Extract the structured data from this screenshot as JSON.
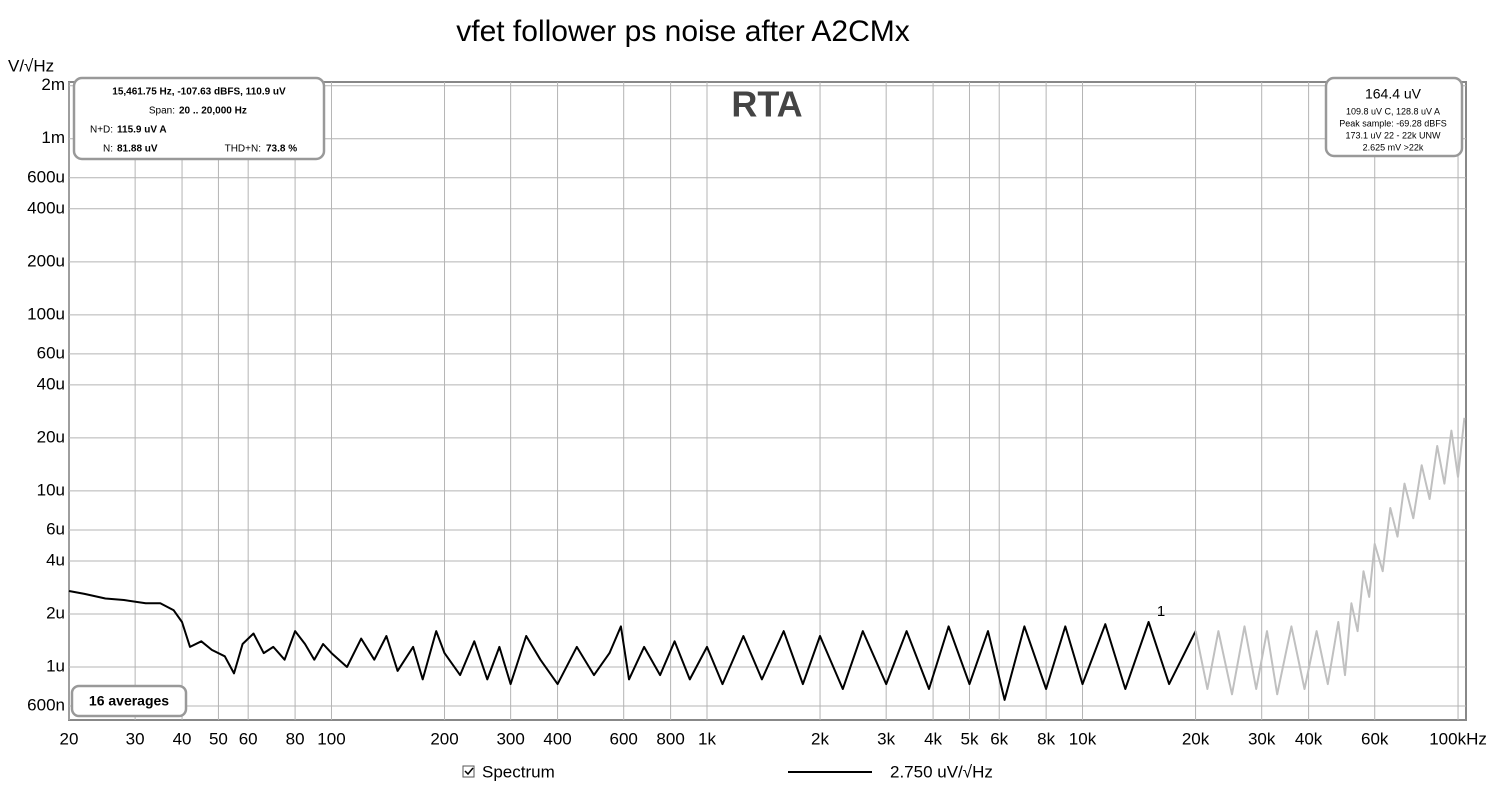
{
  "chart_data": {
    "type": "line",
    "title": "vfet follower ps noise after A2CMx",
    "y_label": "V/√Hz",
    "watermark": "RTA",
    "log_x": true,
    "log_y": true,
    "grid": true,
    "xlim": [
      20,
      105000
    ],
    "ylim": [
      5e-07,
      0.0021
    ],
    "xticks": [
      20,
      30,
      40,
      50,
      60,
      80,
      100,
      200,
      300,
      400,
      600,
      800,
      {
        "value": 1000,
        "label": "1k"
      },
      {
        "value": 2000,
        "label": "2k"
      },
      {
        "value": 3000,
        "label": "3k"
      },
      {
        "value": 4000,
        "label": "4k"
      },
      {
        "value": 5000,
        "label": "5k"
      },
      {
        "value": 6000,
        "label": "6k"
      },
      {
        "value": 8000,
        "label": "8k"
      },
      {
        "value": 10000,
        "label": "10k"
      },
      {
        "value": 20000,
        "label": "20k"
      },
      {
        "value": 30000,
        "label": "30k"
      },
      {
        "value": 40000,
        "label": "40k"
      },
      {
        "value": 60000,
        "label": "60k"
      },
      {
        "value": 100000,
        "label": "100kHz"
      }
    ],
    "yticks": [
      {
        "value": 0.002,
        "label": "2m"
      },
      {
        "value": 0.001,
        "label": "1m"
      },
      {
        "value": 0.0006,
        "label": "600u"
      },
      {
        "value": 0.0004,
        "label": "400u"
      },
      {
        "value": 0.0002,
        "label": "200u"
      },
      {
        "value": 0.0001,
        "label": "100u"
      },
      {
        "value": 6e-05,
        "label": "60u"
      },
      {
        "value": 4e-05,
        "label": "40u"
      },
      {
        "value": 2e-05,
        "label": "20u"
      },
      {
        "value": 1e-05,
        "label": "10u"
      },
      {
        "value": 6e-06,
        "label": "6u"
      },
      {
        "value": 4e-06,
        "label": "4u"
      },
      {
        "value": 2e-06,
        "label": "2u"
      },
      {
        "value": 1e-06,
        "label": "1u"
      },
      {
        "value": 6e-07,
        "label": "600n"
      }
    ],
    "series": [
      {
        "name": "Spectrum",
        "color": "#000000",
        "x": [
          20,
          22,
          25,
          28,
          32,
          35,
          38,
          40,
          42,
          45,
          48,
          52,
          55,
          58,
          62,
          66,
          70,
          75,
          80,
          85,
          90,
          95,
          100,
          110,
          120,
          130,
          140,
          150,
          165,
          175,
          190,
          200,
          220,
          240,
          260,
          280,
          300,
          330,
          360,
          400,
          450,
          500,
          550,
          590,
          620,
          680,
          750,
          820,
          900,
          1000,
          1100,
          1250,
          1400,
          1600,
          1800,
          2000,
          2300,
          2600,
          3000,
          3400,
          3900,
          4400,
          5000,
          5600,
          6200,
          7000,
          8000,
          9000,
          10000,
          11500,
          13000,
          15000,
          17000,
          20000
        ],
        "values": [
          2.7e-06,
          2.6e-06,
          2.45e-06,
          2.4e-06,
          2.3e-06,
          2.3e-06,
          2.1e-06,
          1.8e-06,
          1.3e-06,
          1.4e-06,
          1.25e-06,
          1.15e-06,
          9.2e-07,
          1.35e-06,
          1.55e-06,
          1.2e-06,
          1.3e-06,
          1.1e-06,
          1.6e-06,
          1.35e-06,
          1.1e-06,
          1.35e-06,
          1.2e-06,
          1e-06,
          1.45e-06,
          1.1e-06,
          1.5e-06,
          9.5e-07,
          1.3e-06,
          8.5e-07,
          1.6e-06,
          1.2e-06,
          9e-07,
          1.4e-06,
          8.5e-07,
          1.3e-06,
          8e-07,
          1.5e-06,
          1.1e-06,
          8e-07,
          1.3e-06,
          9e-07,
          1.2e-06,
          1.7e-06,
          8.5e-07,
          1.3e-06,
          9e-07,
          1.4e-06,
          8.5e-07,
          1.3e-06,
          8e-07,
          1.5e-06,
          8.5e-07,
          1.6e-06,
          8e-07,
          1.5e-06,
          7.5e-07,
          1.6e-06,
          8e-07,
          1.6e-06,
          7.5e-07,
          1.7e-06,
          8e-07,
          1.6e-06,
          6.5e-07,
          1.7e-06,
          7.5e-07,
          1.7e-06,
          8e-07,
          1.75e-06,
          7.5e-07,
          1.8e-06,
          8e-07,
          1.6e-06
        ]
      },
      {
        "color": "#c0c0c0",
        "x": [
          20000,
          21500,
          23000,
          25000,
          27000,
          29000,
          31000,
          33000,
          36000,
          39000,
          42000,
          45000,
          48000,
          50000,
          52000,
          54000,
          56000,
          58000,
          60000,
          63000,
          66000,
          69000,
          72000,
          76000,
          80000,
          84000,
          88000,
          92000,
          96000,
          100000,
          104000
        ],
        "values": [
          1.6e-06,
          7.5e-07,
          1.6e-06,
          7e-07,
          1.7e-06,
          7.5e-07,
          1.6e-06,
          7e-07,
          1.7e-06,
          7.5e-07,
          1.6e-06,
          8e-07,
          1.8e-06,
          9e-07,
          2.3e-06,
          1.6e-06,
          3.5e-06,
          2.5e-06,
          5e-06,
          3.5e-06,
          8e-06,
          5.5e-06,
          1.1e-05,
          7e-06,
          1.4e-05,
          9e-06,
          1.8e-05,
          1.1e-05,
          2.2e-05,
          1.2e-05,
          2.6e-05
        ]
      }
    ],
    "legend_value": "2.750 uV/√Hz",
    "cursor_label": "1",
    "averages": "16 averages",
    "info_left": {
      "readout": "15,461.75 Hz, -107.63 dBFS, 110.9 uV",
      "span_label": "Span:",
      "span": "20 .. 20,000 Hz",
      "nd_label": "N+D:",
      "nd": "115.9 uV A",
      "n_label": "N:",
      "n": "81.88 uV",
      "thdn_label": "THD+N:",
      "thdn": "73.8 %"
    },
    "info_right": [
      "164.4 uV",
      "109.8 uV C, 128.8 uV A",
      "Peak sample: -69.28 dBFS",
      "173.1 uV 22 - 22k UNW",
      "2.625 mV >22k"
    ]
  }
}
